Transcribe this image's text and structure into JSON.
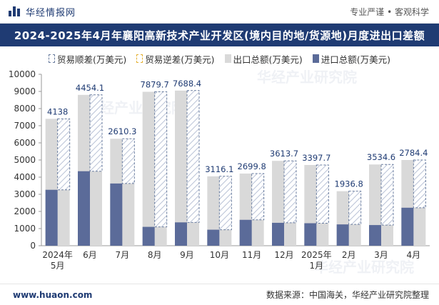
{
  "header": {
    "site_name": "华经情报网",
    "slogan": "专业严谨 • 客观科学"
  },
  "footer": {
    "website": "www.huaon.com",
    "source": "数据来源：中国海关，华经产业研究院整理"
  },
  "chart_data": {
    "type": "bar",
    "title": "2024-2025年4月年襄阳高新技术产业开发区(境内目的地/货源地)月度进出口差额",
    "legend": [
      {
        "label": "贸易顺差(万美元)",
        "kind": "surplus"
      },
      {
        "label": "贸易逆差(万美元)",
        "kind": "deficit"
      },
      {
        "label": "出口总额(万美元)",
        "kind": "total"
      },
      {
        "label": "进口总额(万美元)",
        "kind": "import"
      }
    ],
    "categories": [
      "2024年\n5月",
      "6月",
      "7月",
      "8月",
      "9月",
      "10月",
      "11月",
      "12月",
      "2025年\n1月",
      "2月",
      "3月",
      "4月"
    ],
    "series": [
      {
        "name": "出口总额(万美元)",
        "values": [
          7400,
          8800,
          6240,
          8980,
          9050,
          4050,
          4210,
          4950,
          4710,
          3180,
          4740,
          5000
        ]
      },
      {
        "name": "进口总额(万美元)",
        "values": [
          3262,
          4346,
          3630,
          1100,
          1362,
          934,
          1510,
          1336,
          1312,
          1243,
          1205,
          2216
        ]
      },
      {
        "name": "贸易顺差(万美元)",
        "values": [
          4138,
          4454.1,
          2610.3,
          7879.7,
          7688.4,
          3116.1,
          2699.8,
          3613.7,
          3397.7,
          1936.8,
          3534.6,
          2784.4
        ]
      }
    ],
    "data_labels": [
      "4138",
      "4454.1",
      "2610.3",
      "7879.7",
      "7688.4",
      "3116.1",
      "2699.8",
      "3613.7",
      "3397.7",
      "1936.8",
      "3534.6",
      "2784.4"
    ],
    "ylim": [
      0,
      10000
    ],
    "yticks": [
      0,
      1000,
      2000,
      3000,
      4000,
      5000,
      6000,
      7000,
      8000,
      9000,
      10000
    ],
    "colors": {
      "total": "#d9d9d9",
      "import": "#5b6b99",
      "surplus_border": "#6b7ea0",
      "deficit_border": "#e5b234",
      "label": "#1f3b73",
      "brand": "#1f3b73"
    },
    "grid": false,
    "legend_position": "top"
  },
  "watermark": "华经产业研究院"
}
